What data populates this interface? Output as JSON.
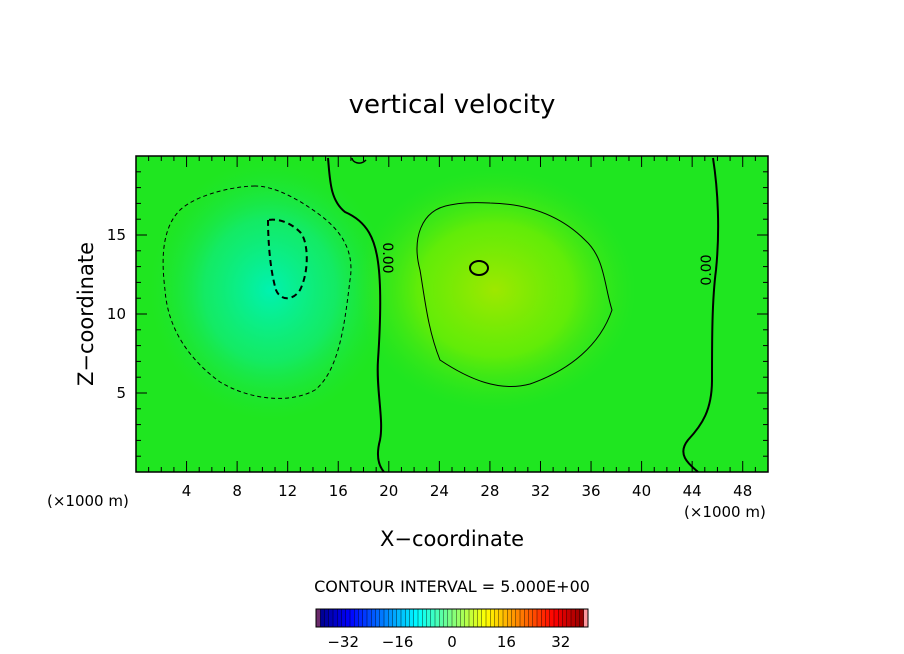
{
  "chart_data": {
    "type": "heatmap",
    "title": "vertical velocity",
    "xlabel": "X−coordinate",
    "ylabel": "Z−coordinate",
    "x_unit_left": "(×1000 m)",
    "x_unit_right": "(×1000 m)",
    "xlim": [
      0,
      50
    ],
    "ylim": [
      0,
      20
    ],
    "x_ticks": [
      "4",
      "8",
      "12",
      "16",
      "20",
      "24",
      "28",
      "32",
      "36",
      "40",
      "44",
      "48"
    ],
    "y_ticks": [
      "5",
      "10",
      "15"
    ],
    "x_tick_values": [
      4,
      8,
      12,
      16,
      20,
      24,
      28,
      32,
      36,
      40,
      44,
      48
    ],
    "y_tick_values": [
      5,
      10,
      15
    ],
    "contour_interval_text": "CONTOUR INTERVAL = 5.000E+00",
    "contour_labels": [
      "0.00",
      "0.00"
    ],
    "features": [
      {
        "sign": "negative",
        "x": 12.0,
        "z": 12.5,
        "peak": -12
      },
      {
        "sign": "positive",
        "x": 27.2,
        "z": 12.8,
        "peak": 10.5
      }
    ],
    "colorbar": {
      "range": [
        -40,
        40
      ],
      "tick_labels": [
        "−32",
        "−16",
        "0",
        "16",
        "32"
      ],
      "tick_values": [
        -32,
        -16,
        0,
        16,
        32
      ]
    },
    "colors": {
      "background": "#ffffff",
      "zero_field": "#1fe61f",
      "negative": "#00f0a0",
      "positive": "#88ee00"
    }
  }
}
